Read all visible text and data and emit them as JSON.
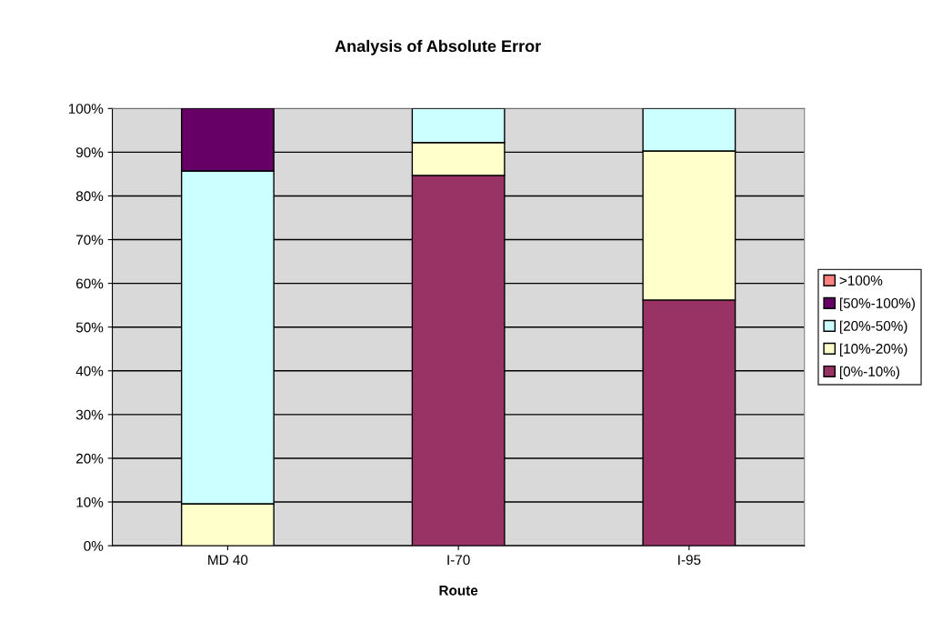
{
  "chart_data": {
    "type": "bar",
    "title": "Analysis of Absolute Error",
    "xlabel": "Route",
    "categories": [
      "MD 40",
      "I-70",
      "I-95"
    ],
    "stacked": true,
    "series": [
      {
        "name": "[0%-10%)",
        "color": "#993366",
        "values": [
          0,
          84.7,
          56.2
        ]
      },
      {
        "name": "[10%-20%)",
        "color": "#ffffcc",
        "values": [
          9.6,
          7.5,
          34.1
        ]
      },
      {
        "name": "[20%-50%)",
        "color": "#ccffff",
        "values": [
          76.1,
          7.8,
          9.7
        ]
      },
      {
        "name": "[50%-100%)",
        "color": "#660066",
        "values": [
          14.3,
          0,
          0
        ]
      },
      {
        "name": ">100%",
        "color": "#ff8080",
        "values": [
          0,
          0,
          0
        ]
      }
    ],
    "ylim": [
      0,
      100
    ],
    "yticks": [
      {
        "value": 0,
        "label": "0%"
      },
      {
        "value": 10,
        "label": "10%"
      },
      {
        "value": 20,
        "label": "20%"
      },
      {
        "value": 30,
        "label": "30%"
      },
      {
        "value": 40,
        "label": "40%"
      },
      {
        "value": 50,
        "label": "50%"
      },
      {
        "value": 60,
        "label": "60%"
      },
      {
        "value": 70,
        "label": "70%"
      },
      {
        "value": 80,
        "label": "80%"
      },
      {
        "value": 90,
        "label": "90%"
      },
      {
        "value": 100,
        "label": "100%"
      }
    ],
    "grid": "y",
    "legend": "right"
  }
}
